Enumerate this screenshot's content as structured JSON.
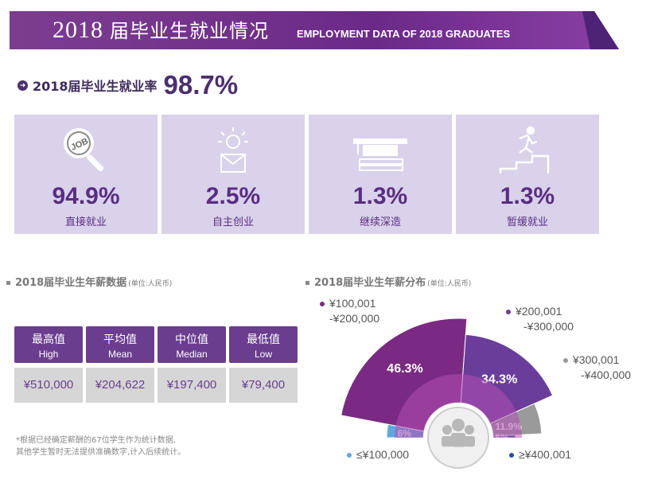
{
  "header": {
    "year": "2018",
    "title_cn": "届毕业生就业情况",
    "title_en": "EMPLOYMENT DATA OF 2018 GRADUATES",
    "color": "#6b2a88"
  },
  "employment_rate": {
    "label": "2018届毕业生就业率",
    "value": "98.7%"
  },
  "cards": [
    {
      "value": "94.9%",
      "label": "直接就业",
      "icon": "job-search-icon"
    },
    {
      "value": "2.5%",
      "label": "自主创业",
      "icon": "lightbulb-person-icon"
    },
    {
      "value": "1.3%",
      "label": "继续深造",
      "icon": "graduation-cap-icon"
    },
    {
      "value": "1.3%",
      "label": "暂缓就业",
      "icon": "stairs-runner-icon"
    }
  ],
  "salary_section": {
    "title": "2018届毕业生年薪数据",
    "unit": "(单位:人民币)",
    "columns": [
      {
        "cn": "最高值",
        "en": "High",
        "value": "¥510,000"
      },
      {
        "cn": "平均值",
        "en": "Mean",
        "value": "¥204,622"
      },
      {
        "cn": "中位值",
        "en": "Median",
        "value": "¥197,400"
      },
      {
        "cn": "最低值",
        "en": "Low",
        "value": "¥79,400"
      }
    ],
    "footnote": [
      "*根据已经确定薪酬的67位学生作为统计数据,",
      "其他学生暂时无法提供准确数字,计入后续统计。"
    ]
  },
  "distribution_section": {
    "title": "2018届毕业生年薪分布",
    "unit": "(单位:人民币)"
  },
  "chart_data": {
    "type": "pie",
    "title": "2018届毕业生年薪分布",
    "slices": [
      {
        "label": "≤¥100,000",
        "value": 6,
        "value_label": "6%",
        "color": "#5fa8dc"
      },
      {
        "label": "¥100,001 -¥200,000",
        "value": 46.3,
        "value_label": "46.3%",
        "color": "#7a2a82"
      },
      {
        "label": "¥200,001 -¥300,000",
        "value": 34.3,
        "value_label": "34.3%",
        "color": "#6a3d9a"
      },
      {
        "label": "¥300,001 -¥400,000",
        "value": 11.9,
        "value_label": "11.9%",
        "color": "#9a9a9a"
      },
      {
        "label": "≥¥400,001",
        "value": 1.5,
        "value_label": "1.5%",
        "color": "#2b4d9c"
      }
    ],
    "legend": [
      {
        "line1": "¥100,001",
        "line2": "-¥200,000",
        "color": "#7a2a82"
      },
      {
        "line1": "¥200,001",
        "line2": "-¥300,000",
        "color": "#6a3d9a"
      },
      {
        "line1": "¥300,001",
        "line2": "-¥400,000",
        "color": "#9a9a9a"
      },
      {
        "line1": "≤¥100,000",
        "line2": "",
        "color": "#5fa8dc"
      },
      {
        "line1": "≥¥400,001",
        "line2": "",
        "color": "#2b4d9c"
      }
    ],
    "center_icon": "group-people-icon"
  }
}
